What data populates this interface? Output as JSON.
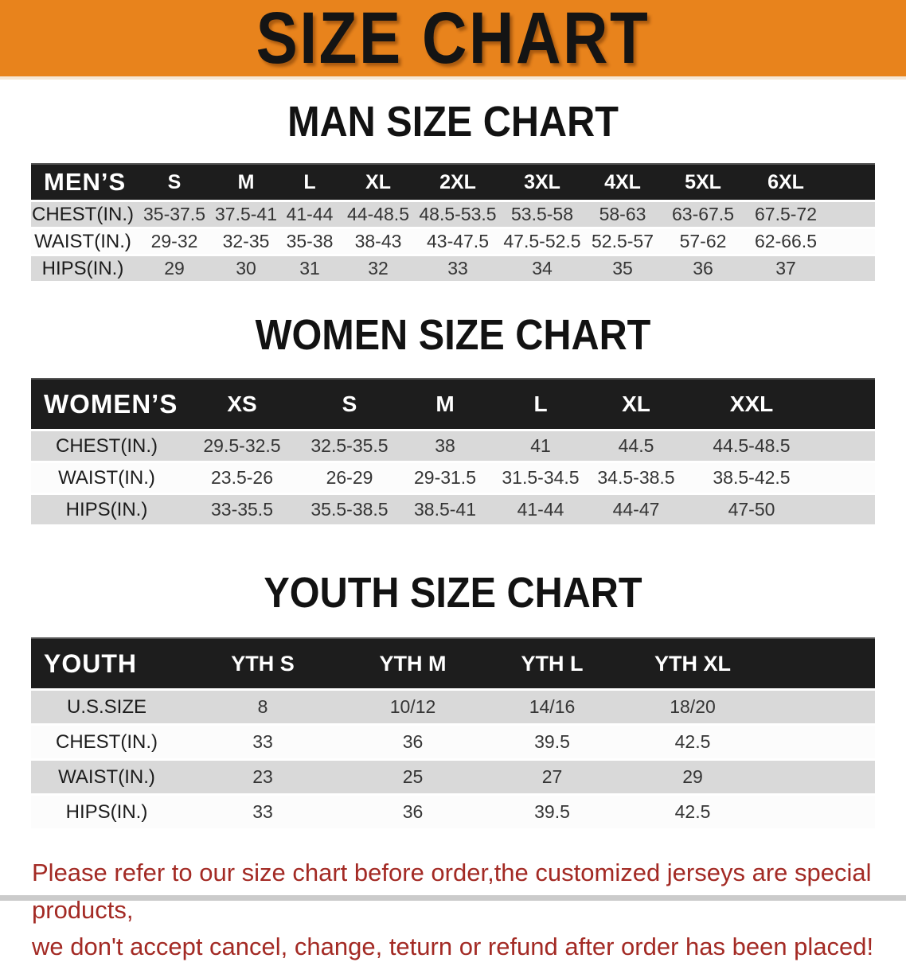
{
  "banner": {
    "title": "SIZE CHART"
  },
  "colors": {
    "banner_orange": "#e8831c",
    "table_header_black": "#1d1d1d",
    "row_gray": "#d9d9d9",
    "row_white": "#fcfcfc",
    "note_red": "#a32a24"
  },
  "sections": [
    {
      "heading": "MAN SIZE CHART",
      "table": {
        "label": "MEN’S",
        "columns": [
          "S",
          "M",
          "L",
          "XL",
          "2XL",
          "3XL",
          "4XL",
          "5XL",
          "6XL"
        ],
        "rows": [
          {
            "label": "CHEST(IN.)",
            "values": [
              "35-37.5",
              "37.5-41",
              "41-44",
              "44-48.5",
              "48.5-53.5",
              "53.5-58",
              "58-63",
              "63-67.5",
              "67.5-72"
            ]
          },
          {
            "label": "WAIST(IN.)",
            "values": [
              "29-32",
              "32-35",
              "35-38",
              "38-43",
              "43-47.5",
              "47.5-52.5",
              "52.5-57",
              "57-62",
              "62-66.5"
            ]
          },
          {
            "label": "HIPS(IN.)",
            "values": [
              "29",
              "30",
              "31",
              "32",
              "33",
              "34",
              "35",
              "36",
              "37"
            ]
          }
        ]
      }
    },
    {
      "heading": "WOMEN SIZE CHART",
      "table": {
        "label": "WOMEN’S",
        "columns": [
          "XS",
          "S",
          "M",
          "L",
          "XL",
          "XXL"
        ],
        "rows": [
          {
            "label": "CHEST(IN.)",
            "values": [
              "29.5-32.5",
              "32.5-35.5",
              "38",
              "41",
              "44.5",
              "44.5-48.5"
            ]
          },
          {
            "label": "WAIST(IN.)",
            "values": [
              "23.5-26",
              "26-29",
              "29-31.5",
              "31.5-34.5",
              "34.5-38.5",
              "38.5-42.5"
            ]
          },
          {
            "label": "HIPS(IN.)",
            "values": [
              "33-35.5",
              "35.5-38.5",
              "38.5-41",
              "41-44",
              "44-47",
              "47-50"
            ]
          }
        ]
      }
    },
    {
      "heading": "YOUTH SIZE CHART",
      "table": {
        "label": "YOUTH",
        "columns": [
          "YTH S",
          "YTH M",
          "YTH L",
          "YTH XL"
        ],
        "rows": [
          {
            "label": "U.S.SIZE",
            "values": [
              "8",
              "10/12",
              "14/16",
              "18/20"
            ]
          },
          {
            "label": "CHEST(IN.)",
            "values": [
              "33",
              "36",
              "39.5",
              "42.5"
            ]
          },
          {
            "label": "WAIST(IN.)",
            "values": [
              "23",
              "25",
              "27",
              "29"
            ]
          },
          {
            "label": "HIPS(IN.)",
            "values": [
              "33",
              "36",
              "39.5",
              "42.5"
            ]
          }
        ]
      }
    }
  ],
  "footer": {
    "line1": "Please refer to our size chart before order,the customized jerseys are special products,",
    "line2": "we don't accept cancel, change, teturn or refund after order has been placed!"
  }
}
